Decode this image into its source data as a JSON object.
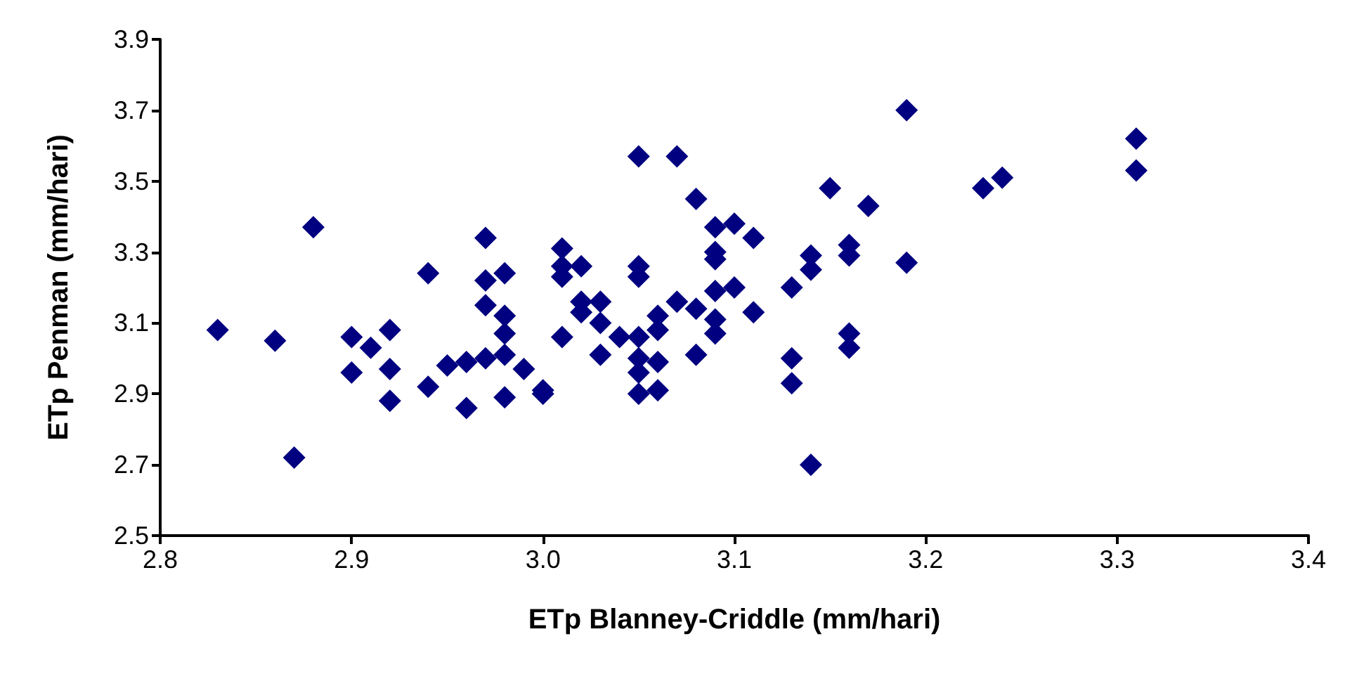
{
  "chart_data": {
    "type": "scatter",
    "xlabel": "ETp Blanney-Criddle (mm/hari)",
    "ylabel": "ETp Penman (mm/hari)",
    "xlim": [
      2.8,
      3.4
    ],
    "xticks": [
      {
        "value": 2.8,
        "label": "2.8"
      },
      {
        "value": 2.9,
        "label": "2.9"
      },
      {
        "value": 3.0,
        "label": "3.0"
      },
      {
        "value": 3.1,
        "label": "3.1"
      },
      {
        "value": 3.2,
        "label": "3.2"
      },
      {
        "value": 3.3,
        "label": "3.3"
      },
      {
        "value": 3.4,
        "label": "3.4"
      }
    ],
    "ylim": [
      2.5,
      3.9
    ],
    "yticks": [
      2.5,
      2.7,
      2.9,
      3.1,
      3.3,
      3.5,
      3.7,
      3.9
    ],
    "marker": "diamond",
    "series": [
      {
        "color": "#000080",
        "x": [
          2.83,
          2.86,
          2.87,
          2.88,
          2.9,
          2.9,
          2.91,
          2.92,
          2.92,
          2.92,
          2.94,
          2.94,
          2.95,
          2.96,
          2.96,
          2.97,
          2.97,
          2.97,
          2.97,
          2.98,
          2.98,
          2.98,
          2.98,
          2.98,
          2.99,
          3.0,
          3.0,
          3.01,
          3.01,
          3.01,
          3.02,
          3.01,
          3.02,
          3.02,
          3.03,
          3.03,
          3.03,
          3.04,
          3.05,
          3.05,
          3.05,
          3.05,
          3.05,
          3.05,
          3.05,
          3.06,
          3.06,
          3.06,
          3.06,
          3.07,
          3.07,
          3.08,
          3.08,
          3.08,
          3.09,
          3.09,
          3.09,
          3.09,
          3.09,
          3.09,
          3.1,
          3.1,
          3.11,
          3.11,
          3.13,
          3.13,
          3.13,
          3.14,
          3.14,
          3.14,
          3.15,
          3.16,
          3.16,
          3.16,
          3.16,
          3.17,
          3.19,
          3.19,
          3.23,
          3.24,
          3.31,
          3.31
        ],
        "values": [
          3.08,
          3.05,
          2.72,
          3.37,
          3.06,
          2.96,
          3.03,
          3.08,
          2.88,
          2.97,
          3.24,
          2.92,
          2.98,
          2.86,
          2.99,
          3.34,
          3.22,
          3.15,
          3.0,
          3.24,
          3.12,
          3.07,
          3.01,
          2.89,
          2.97,
          2.91,
          2.9,
          3.31,
          3.26,
          3.23,
          3.26,
          3.06,
          3.16,
          3.13,
          3.16,
          3.1,
          3.01,
          3.06,
          3.57,
          3.26,
          3.23,
          3.06,
          3.0,
          2.96,
          2.9,
          3.12,
          3.08,
          2.99,
          2.91,
          3.57,
          3.16,
          3.45,
          3.01,
          3.14,
          3.37,
          3.3,
          3.28,
          3.19,
          3.11,
          3.07,
          3.38,
          3.2,
          3.34,
          3.13,
          3.2,
          3.0,
          2.93,
          3.29,
          3.25,
          2.7,
          3.48,
          3.32,
          3.29,
          3.07,
          3.03,
          3.43,
          3.7,
          3.27,
          3.48,
          3.51,
          3.62,
          3.53
        ]
      }
    ]
  }
}
